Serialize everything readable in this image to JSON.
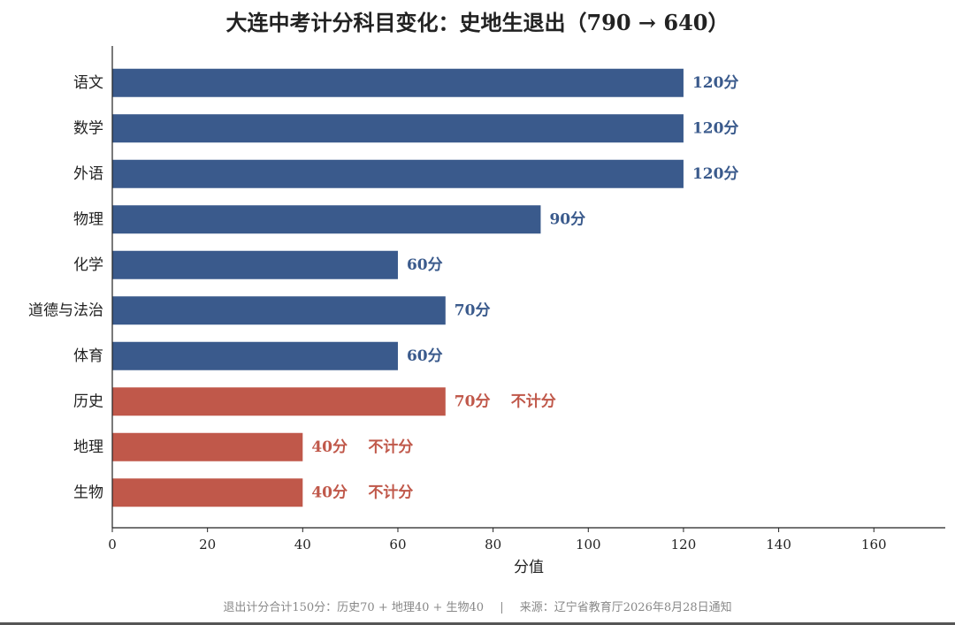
{
  "chart_data": {
    "type": "bar",
    "orientation": "horizontal",
    "title": "大连中考计分科目变化：史地生退出（790 → 640）",
    "xlabel": "分值",
    "xlim": [
      0,
      175
    ],
    "xticks": [
      0,
      20,
      40,
      60,
      80,
      100,
      120,
      140,
      160
    ],
    "categories": [
      "语文",
      "数学",
      "外语",
      "物理",
      "化学",
      "道德与法治",
      "体育",
      "历史",
      "地理",
      "生物"
    ],
    "values": [
      120,
      120,
      120,
      90,
      60,
      70,
      60,
      70,
      40,
      40
    ],
    "value_labels": [
      "120分",
      "120分",
      "120分",
      "90分",
      "60分",
      "70分",
      "60分",
      "70分",
      "40分",
      "40分"
    ],
    "status_labels": [
      "",
      "",
      "",
      "",
      "",
      "",
      "",
      "不计分",
      "不计分",
      "不计分"
    ],
    "status": [
      "counted",
      "counted",
      "counted",
      "counted",
      "counted",
      "counted",
      "counted",
      "excluded",
      "excluded",
      "excluded"
    ],
    "colors": {
      "counted": "#3a5a8c",
      "excluded": "#c0584a"
    },
    "grid": false
  },
  "footer": {
    "note": "退出计分合计150分：历史70 + 地理40 + 生物40",
    "separator": "|",
    "source": "来源：辽宁省教育厅2026年8月28日通知"
  }
}
